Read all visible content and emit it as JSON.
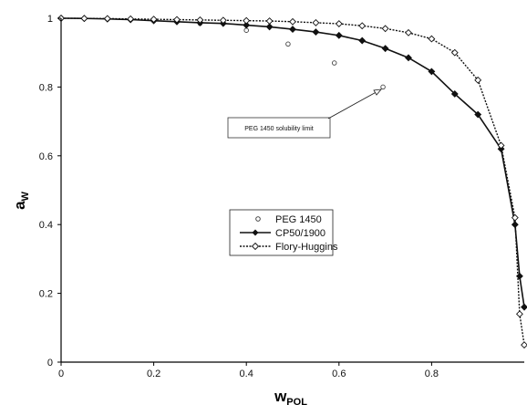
{
  "chart_data": {
    "type": "scatter",
    "title": "",
    "xlabel": {
      "main": "w",
      "sub": "POL"
    },
    "ylabel": {
      "main": "a",
      "sub": "W"
    },
    "xlim": [
      0,
      1.0
    ],
    "ylim": [
      0,
      1.0
    ],
    "x_ticks": [
      "0",
      "0.2",
      "0.4",
      "0.6",
      "0.8"
    ],
    "y_ticks": [
      "0",
      "0.2",
      "0.4",
      "0.6",
      "0.8",
      "1"
    ],
    "grid": false,
    "legend_position": "center",
    "annotation": {
      "text": "PEG 1450 solubility limit"
    },
    "series": [
      {
        "name": "PEG 1450",
        "style": "markers-open-circle",
        "x": [
          0.0,
          0.1,
          0.2,
          0.3,
          0.4,
          0.49,
          0.59,
          0.695
        ],
        "y": [
          1.0,
          0.998,
          0.993,
          0.985,
          0.965,
          0.925,
          0.87,
          0.8
        ]
      },
      {
        "name": "CP50/1900",
        "style": "solid-line-filled-diamond",
        "x": [
          0.0,
          0.05,
          0.1,
          0.15,
          0.2,
          0.25,
          0.3,
          0.35,
          0.4,
          0.45,
          0.5,
          0.55,
          0.6,
          0.65,
          0.7,
          0.75,
          0.8,
          0.85,
          0.9,
          0.95,
          0.98,
          0.99,
          1.0
        ],
        "y": [
          1.0,
          0.9995,
          0.998,
          0.996,
          0.993,
          0.99,
          0.987,
          0.985,
          0.98,
          0.975,
          0.968,
          0.96,
          0.95,
          0.935,
          0.912,
          0.885,
          0.845,
          0.78,
          0.72,
          0.62,
          0.4,
          0.25,
          0.16
        ]
      },
      {
        "name": "Flory-Huggins",
        "style": "dotted-line-open-diamond",
        "x": [
          0.0,
          0.05,
          0.1,
          0.15,
          0.2,
          0.25,
          0.3,
          0.35,
          0.4,
          0.45,
          0.5,
          0.55,
          0.6,
          0.65,
          0.7,
          0.75,
          0.8,
          0.85,
          0.9,
          0.95,
          0.98,
          0.99,
          1.0
        ],
        "y": [
          1.0,
          0.9995,
          0.999,
          0.998,
          0.997,
          0.996,
          0.995,
          0.994,
          0.993,
          0.992,
          0.99,
          0.987,
          0.984,
          0.978,
          0.97,
          0.958,
          0.94,
          0.9,
          0.82,
          0.63,
          0.42,
          0.14,
          0.05
        ]
      }
    ]
  }
}
